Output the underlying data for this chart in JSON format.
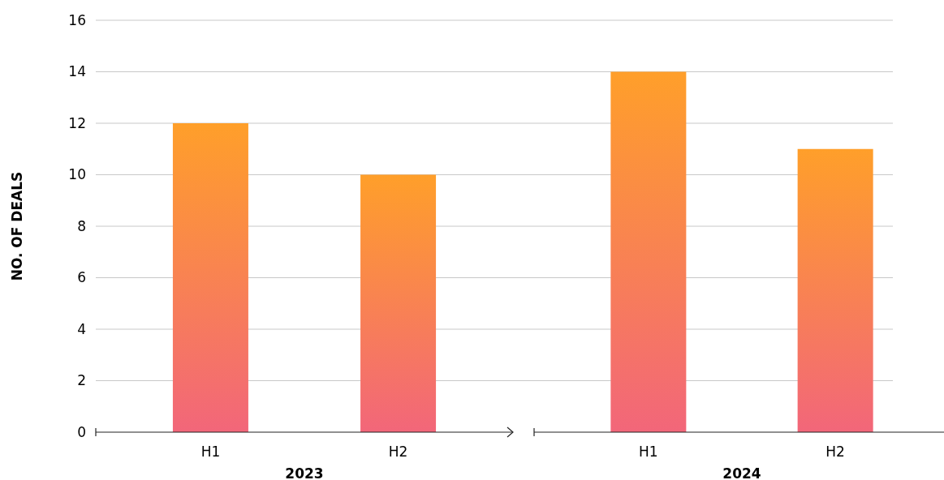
{
  "chart_data": [
    {
      "type": "bar",
      "xlabel": "2023",
      "ylabel": "NO. OF DEALS",
      "categories": [
        "H1",
        "H2"
      ],
      "series": [
        {
          "color": "#ff9f2a",
          "values": [
            12,
            10
          ]
        }
      ],
      "ylim": [
        0,
        16
      ],
      "yticks": [
        0,
        2,
        4,
        6,
        8,
        10,
        12,
        14,
        16
      ],
      "grid": "y"
    },
    {
      "type": "bar",
      "xlabel": "2024",
      "categories": [
        "H1",
        "H2"
      ],
      "series": [
        {
          "color": "#ff9f2a",
          "values": [
            14,
            11
          ]
        }
      ],
      "ylim": [
        0,
        16
      ],
      "yticks": [
        0,
        2,
        4,
        6,
        8,
        10,
        12,
        14,
        16
      ],
      "grid": "y",
      "tick_labels": "x"
    }
  ]
}
